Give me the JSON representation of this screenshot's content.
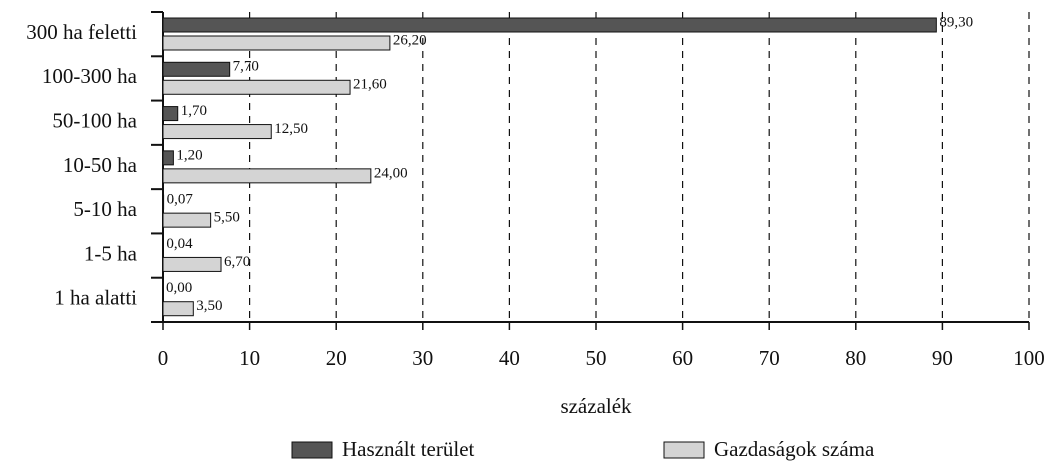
{
  "chart_data": {
    "type": "hbar",
    "xlabel": "százalék",
    "categories": [
      "300 ha feletti",
      "100-300 ha",
      "50-100 ha",
      "10-50 ha",
      "5-10 ha",
      "1-5 ha",
      "1 ha alatti"
    ],
    "series": [
      {
        "name": "Használt terület",
        "color": "#555555",
        "values": [
          89.3,
          7.7,
          1.7,
          1.2,
          0.07,
          0.04,
          0.0
        ],
        "value_labels": [
          "89,30",
          "7,70",
          "1,70",
          "1,20",
          "0,07",
          "0,04",
          "0,00"
        ]
      },
      {
        "name": "Gazdaságok száma",
        "color": "#d4d4d4",
        "values": [
          26.2,
          21.6,
          12.5,
          24.0,
          5.5,
          6.7,
          3.5
        ],
        "value_labels": [
          "26,20",
          "21,60",
          "12,50",
          "24,00",
          "5,50",
          "6,70",
          "3,50"
        ]
      }
    ],
    "xlim": [
      0,
      100
    ],
    "xticks": [
      0,
      10,
      20,
      30,
      40,
      50,
      60,
      70,
      80,
      90,
      100
    ],
    "grid": true,
    "legend": "bottom"
  }
}
